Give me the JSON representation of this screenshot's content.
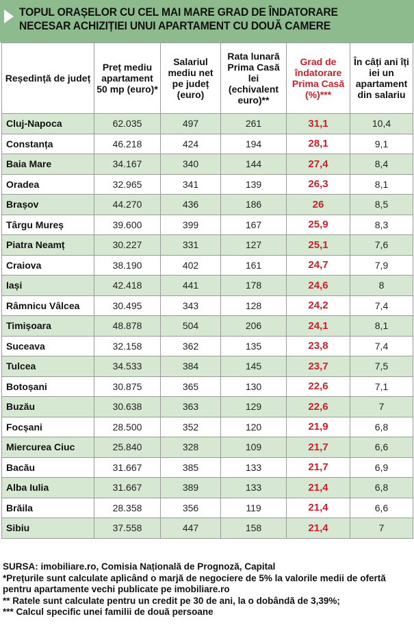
{
  "title": {
    "line1": "TOPUL ORAȘELOR CU CEL MAI MARE GRAD DE ÎNDATORARE",
    "line2": "NECESAR ACHIZIȚIEI UNUI APARTAMENT CU DOUĂ CAMERE"
  },
  "headers": [
    "Reședință de județ",
    "Preț mediu apartament 50 mp (euro)*",
    "Salariul mediu net pe județ (euro)",
    "Rata lunară Prima Casă lei (echivalent euro)**",
    "Grad de îndatorare Prima Casă (%)***",
    "În câți ani îți iei un apartament din salariu"
  ],
  "rows": [
    {
      "city": "Cluj-Napoca",
      "price": "62.035",
      "salary": "497",
      "rate": "261",
      "grade": "31,1",
      "years": "10,4"
    },
    {
      "city": "Constanța",
      "price": "46.218",
      "salary": "424",
      "rate": "194",
      "grade": "28,1",
      "years": "9,1"
    },
    {
      "city": "Baia Mare",
      "price": "34.167",
      "salary": "340",
      "rate": "144",
      "grade": "27,4",
      "years": "8,4"
    },
    {
      "city": "Oradea",
      "price": "32.965",
      "salary": "341",
      "rate": "139",
      "grade": "26,3",
      "years": "8,1"
    },
    {
      "city": "Brașov",
      "price": "44.270",
      "salary": "436",
      "rate": "186",
      "grade": "26",
      "years": "8,5"
    },
    {
      "city": "Târgu Mureș",
      "price": "39.600",
      "salary": "399",
      "rate": "167",
      "grade": "25,9",
      "years": "8,3"
    },
    {
      "city": "Piatra Neamț",
      "price": "30.227",
      "salary": "331",
      "rate": "127",
      "grade": "25,1",
      "years": "7,6"
    },
    {
      "city": "Craiova",
      "price": "38.190",
      "salary": "402",
      "rate": "161",
      "grade": "24,7",
      "years": "7,9"
    },
    {
      "city": "Iași",
      "price": "42.418",
      "salary": "441",
      "rate": "178",
      "grade": "24,6",
      "years": "8"
    },
    {
      "city": "Râmnicu Vâlcea",
      "price": "30.495",
      "salary": "343",
      "rate": "128",
      "grade": "24,2",
      "years": "7,4"
    },
    {
      "city": "Timișoara",
      "price": "48.878",
      "salary": "504",
      "rate": "206",
      "grade": "24,1",
      "years": "8,1"
    },
    {
      "city": "Suceava",
      "price": "32.158",
      "salary": "362",
      "rate": "135",
      "grade": "23,8",
      "years": "7,4"
    },
    {
      "city": "Tulcea",
      "price": "34.533",
      "salary": "384",
      "rate": "145",
      "grade": "23,7",
      "years": "7,5"
    },
    {
      "city": "Botoșani",
      "price": "30.875",
      "salary": "365",
      "rate": "130",
      "grade": "22,6",
      "years": "7,1"
    },
    {
      "city": "Buzău",
      "price": "30.638",
      "salary": "363",
      "rate": "129",
      "grade": "22,6",
      "years": "7"
    },
    {
      "city": "Focșani",
      "price": "28.500",
      "salary": "352",
      "rate": "120",
      "grade": "21,9",
      "years": "6,8"
    },
    {
      "city": "Miercurea Ciuc",
      "price": "25.840",
      "salary": "328",
      "rate": "109",
      "grade": "21,7",
      "years": "6,6"
    },
    {
      "city": "Bacău",
      "price": "31.667",
      "salary": "385",
      "rate": "133",
      "grade": "21,7",
      "years": "6,9"
    },
    {
      "city": "Alba Iulia",
      "price": "31.667",
      "salary": "389",
      "rate": "133",
      "grade": "21,4",
      "years": "6,8"
    },
    {
      "city": "Brăila",
      "price": "28.358",
      "salary": "356",
      "rate": "119",
      "grade": "21,4",
      "years": "6,6"
    },
    {
      "city": "Sibiu",
      "price": "37.558",
      "salary": "447",
      "rate": "158",
      "grade": "21,4",
      "years": "7"
    }
  ],
  "footer": {
    "source": "SURSA: imobiliare.ro, Comisia Națională de Prognoză, Capital",
    "note1": "*Prețurile sunt calculate aplicând o marjă de negociere de 5% la valorile medii de ofertă pentru apartamente vechi publicate pe imobiliare.ro",
    "note2": "** Ratele sunt calculate pentru un credit pe 30 de ani, la o dobândă de 3,39%;",
    "note3": "*** Calcul specific unei familii de două persoane"
  },
  "colors": {
    "title_bg": "#8dbb8d",
    "row_alt_bg": "#d6e7d2",
    "highlight_red": "#c8202a"
  }
}
